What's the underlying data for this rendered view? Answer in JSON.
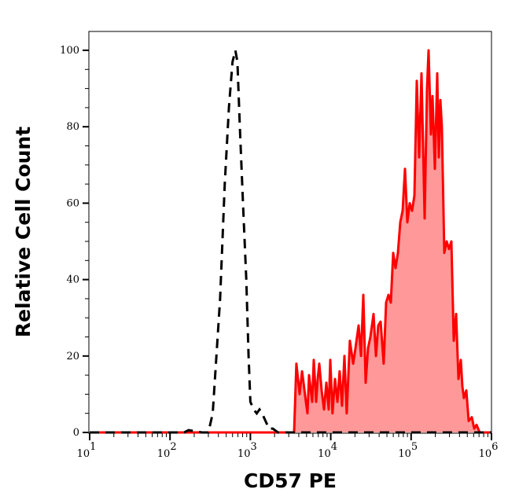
{
  "chart_data": {
    "type": "area",
    "xlabel": "CD57 PE",
    "ylabel": "Relative Cell Count",
    "xscale": "log",
    "xlim": [
      10,
      1000000
    ],
    "ylim": [
      0,
      105
    ],
    "x_ticks": [
      {
        "base": "10",
        "exp": "1",
        "value": 10
      },
      {
        "base": "10",
        "exp": "2",
        "value": 100
      },
      {
        "base": "10",
        "exp": "3",
        "value": 1000
      },
      {
        "base": "10",
        "exp": "4",
        "value": 10000
      },
      {
        "base": "10",
        "exp": "5",
        "value": 100000
      },
      {
        "base": "10",
        "exp": "6",
        "value": 1000000
      }
    ],
    "y_ticks": [
      "0",
      "20",
      "40",
      "60",
      "80",
      "100"
    ],
    "grid": false,
    "series": [
      {
        "style": "dashed-line",
        "color": "#000000",
        "x": [
          10,
          150,
          170,
          250,
          300,
          340,
          420,
          480,
          540,
          600,
          650,
          690,
          740,
          810,
          890,
          950,
          1000,
          1100,
          1200,
          1300,
          1400,
          1700,
          1900,
          2200,
          1000000
        ],
        "y": [
          0,
          0,
          0.6,
          0,
          0,
          5,
          35,
          65,
          85,
          97,
          100,
          97,
          80,
          60,
          40,
          20,
          8,
          6,
          5,
          6,
          5,
          1,
          1,
          0,
          0
        ]
      },
      {
        "style": "filled-area",
        "color": "#ff0000",
        "fill": "#ff9999",
        "x": [
          10,
          3500,
          3740,
          4100,
          4390,
          4590,
          4910,
          5130,
          5370,
          5870,
          6150,
          6580,
          6880,
          7200,
          7700,
          8240,
          8810,
          9440,
          9870,
          10500,
          11300,
          12100,
          12900,
          13800,
          14800,
          15800,
          17300,
          19000,
          20300,
          22200,
          23800,
          25400,
          27200,
          29100,
          31100,
          34100,
          36500,
          39000,
          41700,
          45600,
          48900,
          52300,
          55900,
          59800,
          64000,
          68500,
          73300,
          78400,
          83900,
          89800,
          96000,
          102800,
          109900,
          117500,
          125900,
          134600,
          147200,
          157800,
          164800,
          176600,
          184500,
          197400,
          211300,
          220800,
          231200,
          241500,
          258800,
          276700,
          295800,
          317000,
          338800,
          363100,
          388200,
          415000,
          434500,
          453900,
          486400,
          520000,
          568900,
          609500,
          651600,
          712800,
          1000000
        ],
        "y": [
          0,
          0,
          18,
          10,
          16,
          13,
          8,
          5,
          15,
          8,
          19,
          8,
          14,
          18,
          11,
          6,
          13,
          6,
          19,
          5,
          14,
          8,
          16,
          7,
          20,
          5,
          24,
          18,
          22,
          28,
          20,
          36,
          13,
          22,
          25,
          31,
          20,
          28,
          29,
          18,
          34,
          36,
          34,
          47,
          43,
          47,
          55,
          58,
          69,
          55,
          60,
          58,
          62,
          92,
          72,
          94,
          56,
          90,
          100,
          78,
          88,
          69,
          94,
          72,
          87,
          80,
          47,
          50,
          48,
          50,
          24,
          31,
          14,
          19,
          12,
          9,
          11,
          3,
          4,
          1,
          2,
          0,
          0
        ]
      }
    ]
  }
}
